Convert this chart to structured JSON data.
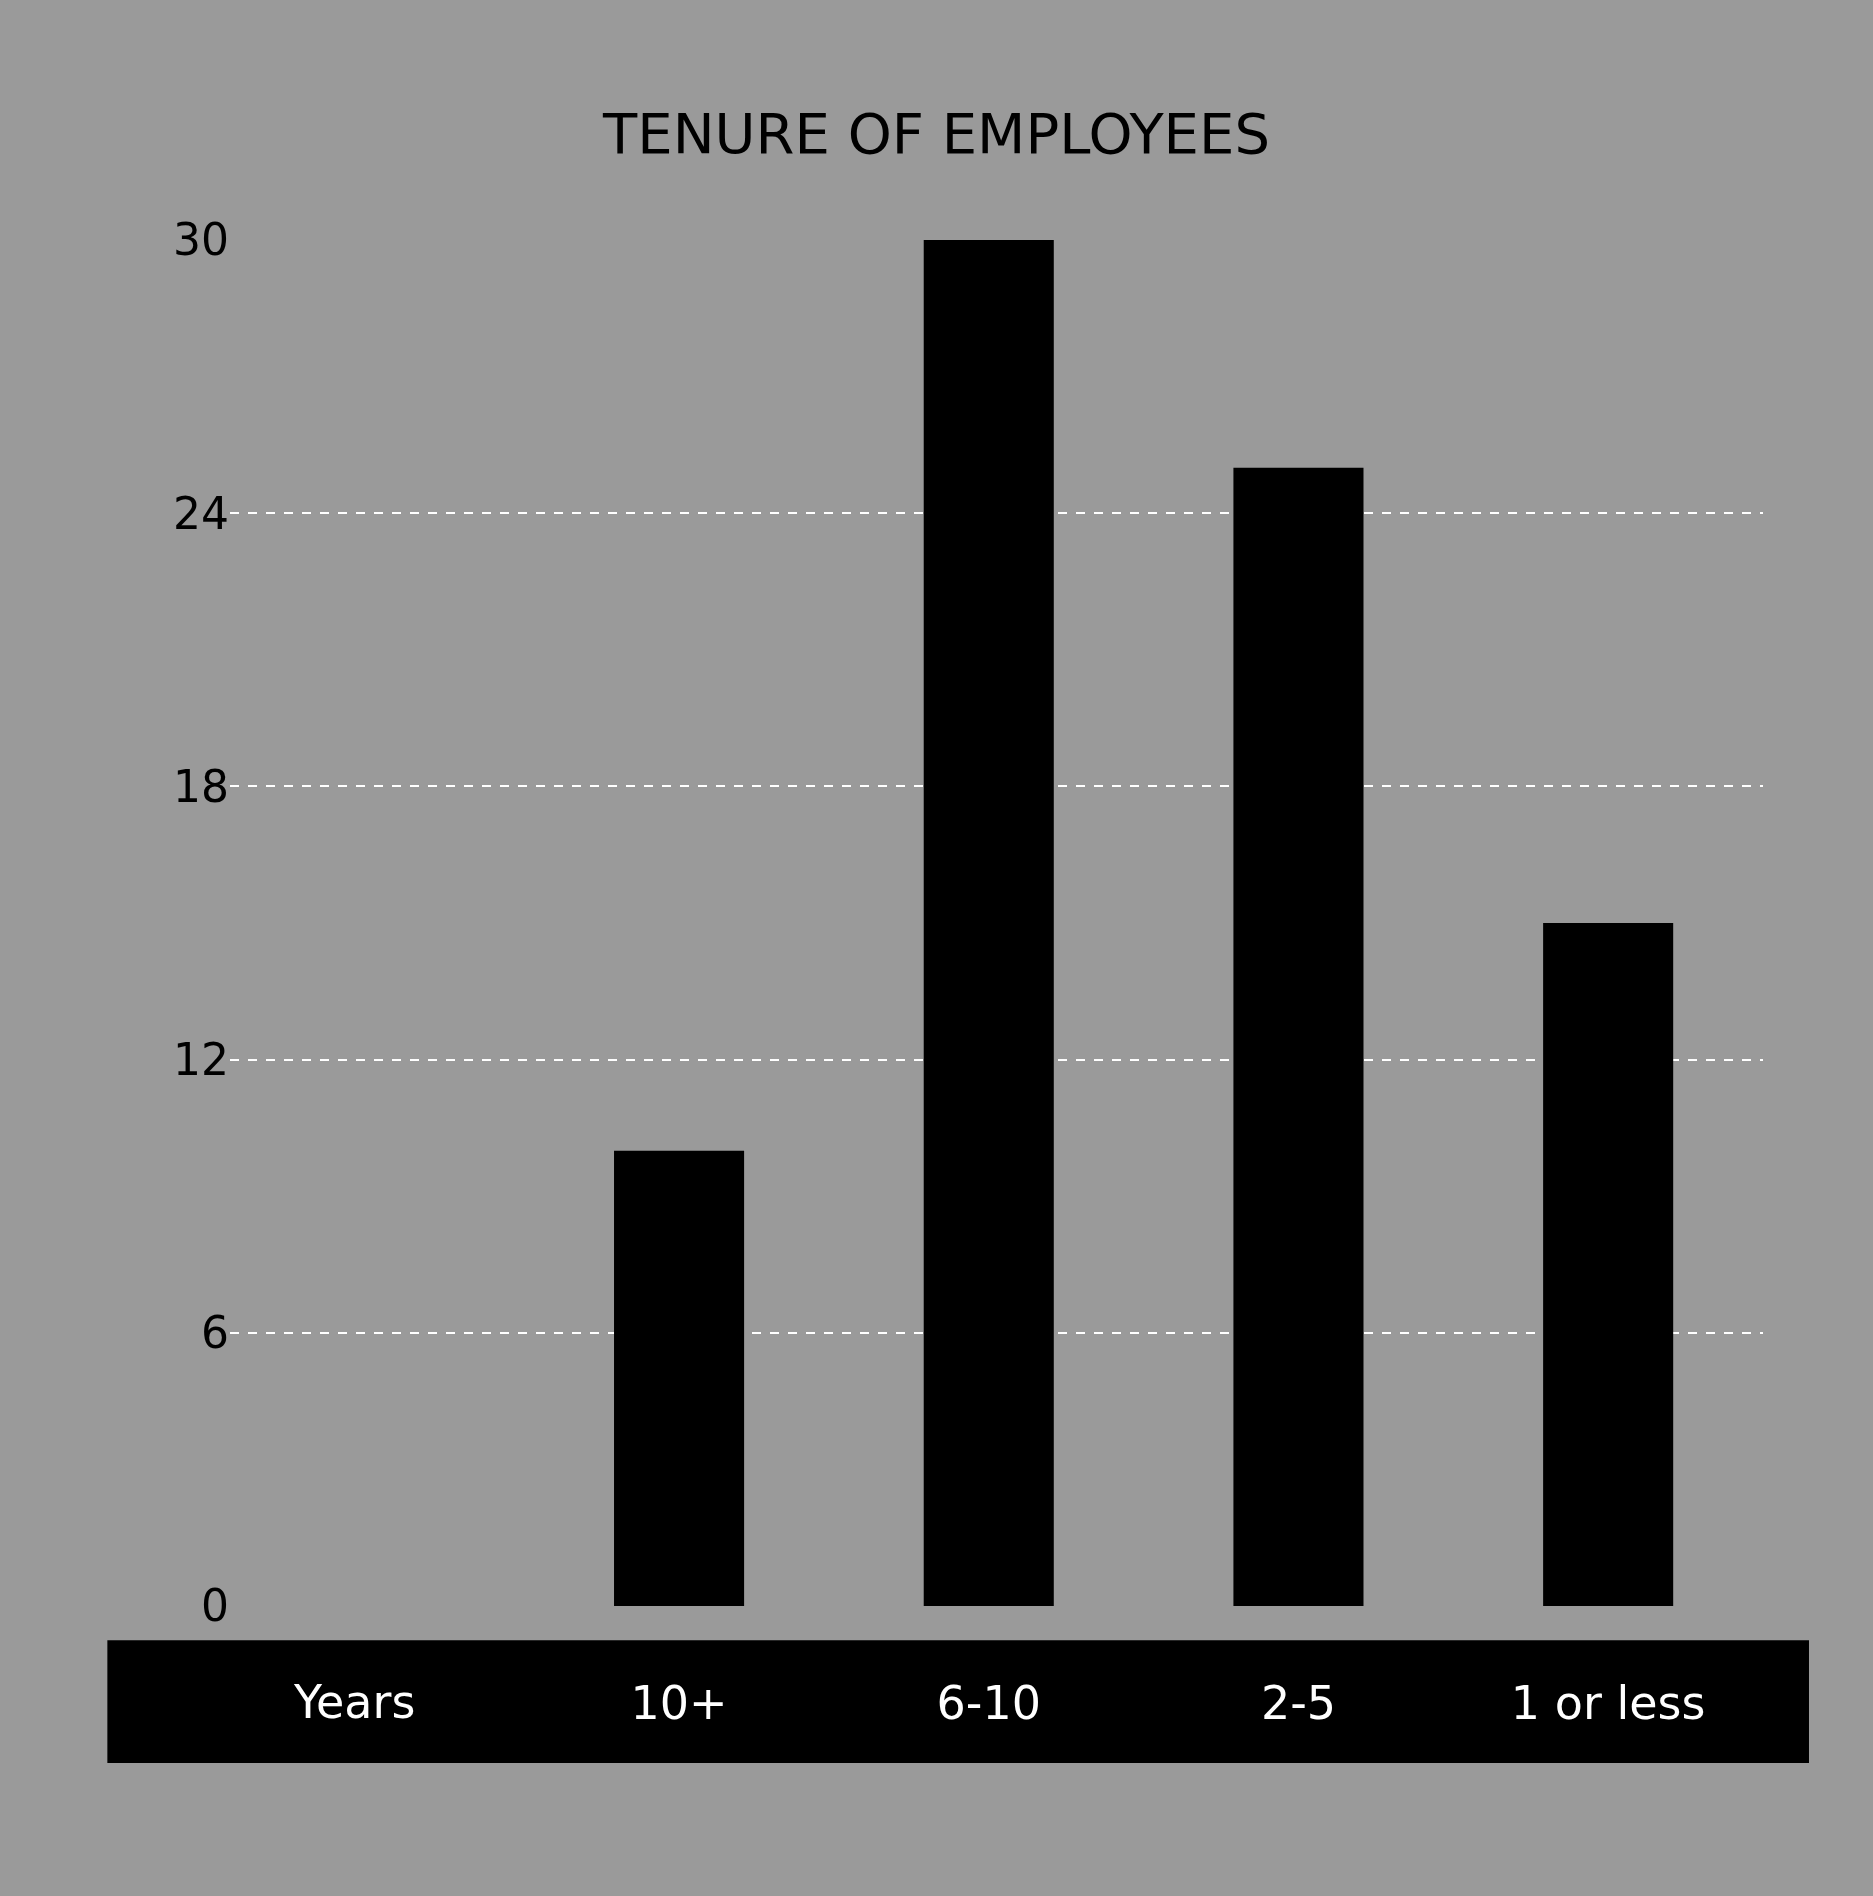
{
  "chart_data": {
    "type": "bar",
    "title": "TENURE OF EMPLOYEES",
    "xlabel": "Years",
    "categories": [
      "10+",
      "6-10",
      "2-5",
      "1 or less"
    ],
    "values": [
      10,
      30,
      25,
      15
    ],
    "color": "#000000",
    "ylim": [
      0,
      30
    ],
    "yticks": [
      0,
      6,
      12,
      18,
      24,
      30
    ],
    "grid": "y"
  }
}
